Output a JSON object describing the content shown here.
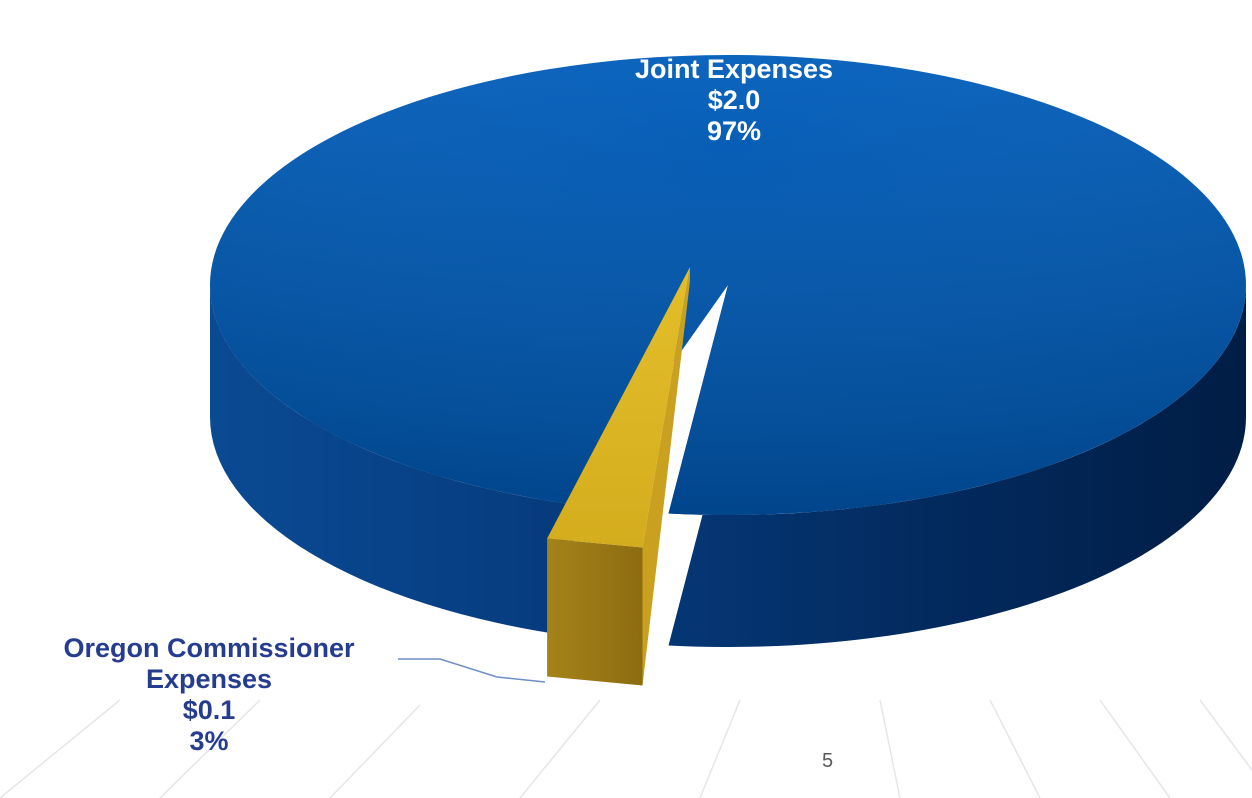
{
  "chart_data": {
    "type": "pie",
    "style": "3d",
    "slices": [
      {
        "label_lines": [
          "Joint Expenses",
          "$2.0",
          "97%"
        ],
        "name": "Joint Expenses",
        "value": 2.0,
        "percent": 97,
        "color": "#0050a0"
      },
      {
        "label_lines": [
          "Oregon Commissioner",
          "Expenses",
          "$0.1",
          "3%"
        ],
        "name": "Oregon Commissioner Expenses",
        "value": 0.1,
        "percent": 3,
        "color": "#d9b422"
      }
    ]
  },
  "colors": {
    "joint_top": "#0050a0",
    "joint_side_dark": "#00204c",
    "oregon_top": "#d9b422",
    "oregon_side": "#9c7a12",
    "oregon_label": "#263d8f",
    "leader_line": "#6f8fc8"
  },
  "footer": {
    "page_number": "5"
  }
}
